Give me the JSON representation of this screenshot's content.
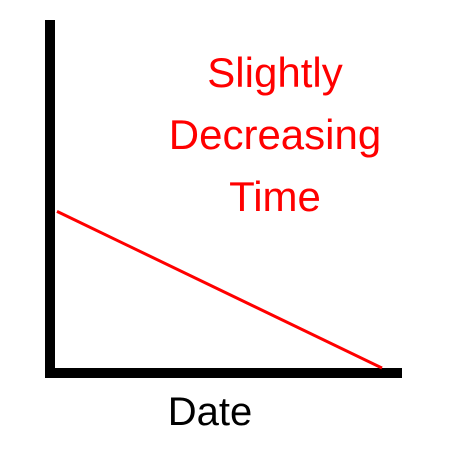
{
  "chart_data": {
    "type": "line",
    "title_lines": [
      "Slightly",
      "Decreasing",
      "Time"
    ],
    "xlabel": "Date",
    "ylabel": "",
    "series": [
      {
        "color": "#ff0000",
        "x": [
          0,
          1
        ],
        "y": [
          0.45,
          0
        ]
      }
    ],
    "xlim": [
      0,
      1
    ],
    "ylim": [
      0,
      1
    ],
    "grid": false,
    "legend": "none",
    "tick_labels": false
  },
  "colors": {
    "title": "#ff0000",
    "axis": "#000000",
    "label": "#000000"
  }
}
